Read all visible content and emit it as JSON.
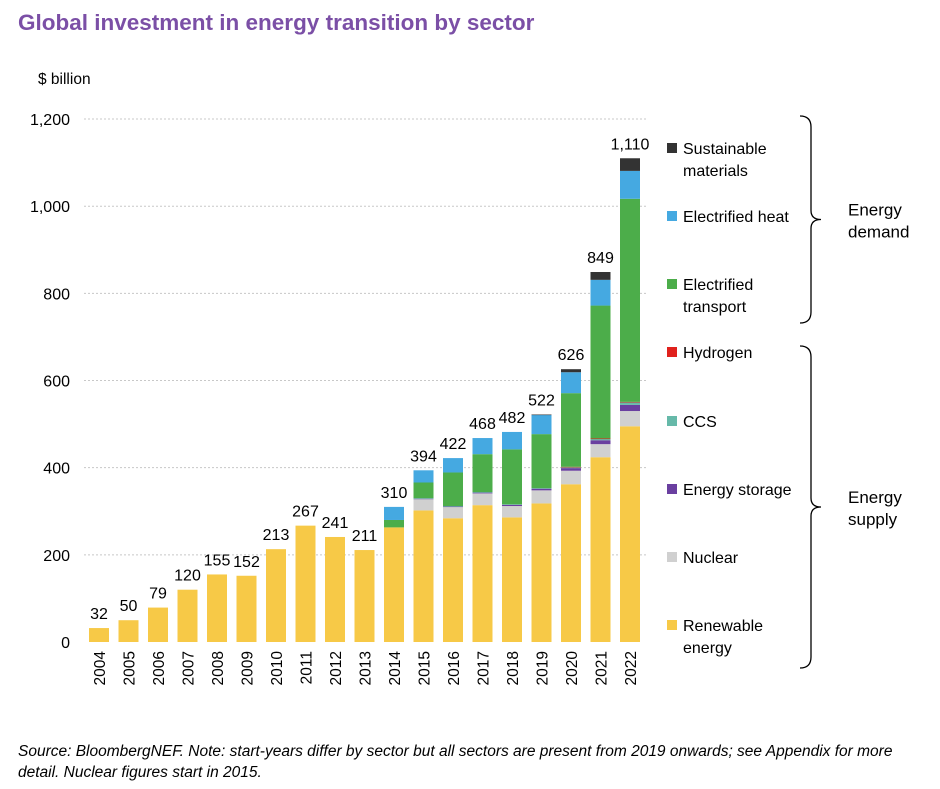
{
  "title": "Global investment in energy transition by sector",
  "source": "Source: BloombergNEF. Note: start-years differ by sector but all sectors are present from 2019 onwards; see Appendix for more detail. Nuclear figures start in 2015.",
  "chart_data": {
    "type": "bar",
    "stacked": true,
    "title": "Global investment in energy transition by sector",
    "ylabel": "$ billion",
    "xlabel": "",
    "ylim": [
      0,
      1200
    ],
    "yticks": [
      0,
      200,
      400,
      600,
      800,
      1000,
      1200
    ],
    "ytick_labels": [
      "0",
      "200",
      "400",
      "600",
      "800",
      "1,000",
      "1,200"
    ],
    "grid": true,
    "legend_position": "right",
    "categories": [
      "2004",
      "2005",
      "2006",
      "2007",
      "2008",
      "2009",
      "2010",
      "2011",
      "2012",
      "2013",
      "2014",
      "2015",
      "2016",
      "2017",
      "2018",
      "2019",
      "2020",
      "2021",
      "2022"
    ],
    "totals": [
      "32",
      "50",
      "79",
      "120",
      "155",
      "152",
      "213",
      "267",
      "241",
      "211",
      "310",
      "394",
      "422",
      "468",
      "482",
      "522",
      "626",
      "849",
      "1,110"
    ],
    "series": [
      {
        "name": "Renewable energy",
        "color": "#f7c947",
        "values": [
          32,
          50,
          79,
          120,
          155,
          152,
          213,
          267,
          241,
          211,
          263,
          302,
          284,
          314,
          286,
          318,
          362,
          424,
          495
        ]
      },
      {
        "name": "Nuclear",
        "color": "#d0d0d0",
        "values": [
          0,
          0,
          0,
          0,
          0,
          0,
          0,
          0,
          0,
          0,
          0,
          26,
          26,
          27,
          26,
          30,
          31,
          30,
          35
        ]
      },
      {
        "name": "Energy storage",
        "color": "#6a3fa0",
        "values": [
          0,
          0,
          0,
          0,
          0,
          0,
          0,
          0,
          0,
          0,
          0,
          1,
          1,
          2,
          3,
          4,
          6,
          9,
          14
        ]
      },
      {
        "name": "CCS",
        "color": "#66b9a9",
        "values": [
          0,
          0,
          0,
          0,
          0,
          0,
          0,
          0,
          0,
          0,
          0,
          1,
          1,
          1,
          1,
          1,
          2,
          3,
          6
        ]
      },
      {
        "name": "Hydrogen",
        "color": "#e0211d",
        "values": [
          0,
          0,
          0,
          0,
          0,
          0,
          0,
          0,
          0,
          0,
          0,
          0,
          0,
          0,
          0,
          0,
          1,
          1,
          1
        ]
      },
      {
        "name": "Electrified transport",
        "color": "#4cad4a",
        "values": [
          0,
          0,
          0,
          0,
          0,
          0,
          0,
          0,
          0,
          0,
          17,
          36,
          77,
          87,
          126,
          124,
          169,
          305,
          466
        ]
      },
      {
        "name": "Electrified heat",
        "color": "#45a9e1",
        "values": [
          0,
          0,
          0,
          0,
          0,
          0,
          0,
          0,
          0,
          0,
          30,
          28,
          33,
          37,
          40,
          44,
          48,
          59,
          64
        ]
      },
      {
        "name": "Sustainable materials",
        "color": "#333333",
        "values": [
          0,
          0,
          0,
          0,
          0,
          0,
          0,
          0,
          0,
          0,
          0,
          0,
          0,
          0,
          0,
          1,
          7,
          18,
          29
        ]
      }
    ],
    "legend_groups": [
      {
        "label": "Energy demand",
        "members": [
          "Sustainable materials",
          "Electrified heat",
          "Electrified transport"
        ]
      },
      {
        "label": "Energy supply",
        "members": [
          "Hydrogen",
          "CCS",
          "Energy storage",
          "Nuclear",
          "Renewable energy"
        ]
      }
    ]
  }
}
